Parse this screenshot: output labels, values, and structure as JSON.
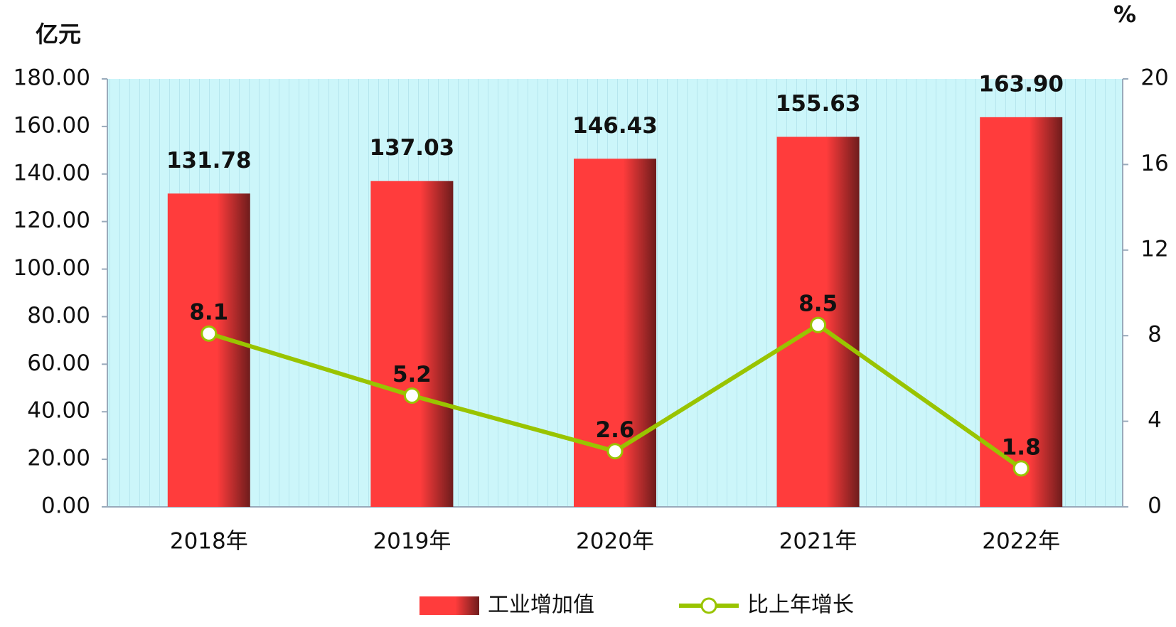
{
  "chart_data": {
    "type": "bar",
    "y_unit": "亿元",
    "y2_unit": "%",
    "categories": [
      "2018年",
      "2019年",
      "2020年",
      "2021年",
      "2022年"
    ],
    "series": [
      {
        "name": "工业增加值",
        "type": "bar",
        "color": "#ff3c3c",
        "values": [
          131.78,
          137.03,
          146.43,
          155.63,
          163.9
        ],
        "value_labels": [
          "131.78",
          "137.03",
          "146.43",
          "155.63",
          "163.90"
        ]
      },
      {
        "name": "比上年增长",
        "type": "line",
        "axis": "y2",
        "color": "#99c400",
        "values": [
          8.1,
          5.2,
          2.6,
          8.5,
          1.8
        ]
      }
    ],
    "ylim": [
      0,
      180
    ],
    "yticks": [
      {
        "value": 0,
        "label": "0.00"
      },
      {
        "value": 20,
        "label": "20.00"
      },
      {
        "value": 40,
        "label": "40.00"
      },
      {
        "value": 60,
        "label": "60.00"
      },
      {
        "value": 80,
        "label": "80.00"
      },
      {
        "value": 100,
        "label": "100.00"
      },
      {
        "value": 120,
        "label": "120.00"
      },
      {
        "value": 140,
        "label": "140.00"
      },
      {
        "value": 160,
        "label": "160.00"
      },
      {
        "value": 180,
        "label": "180.00"
      }
    ],
    "y2lim": [
      0,
      20
    ],
    "y2ticks": [
      0,
      4,
      8,
      12,
      16,
      20
    ],
    "legend": "bottom"
  }
}
